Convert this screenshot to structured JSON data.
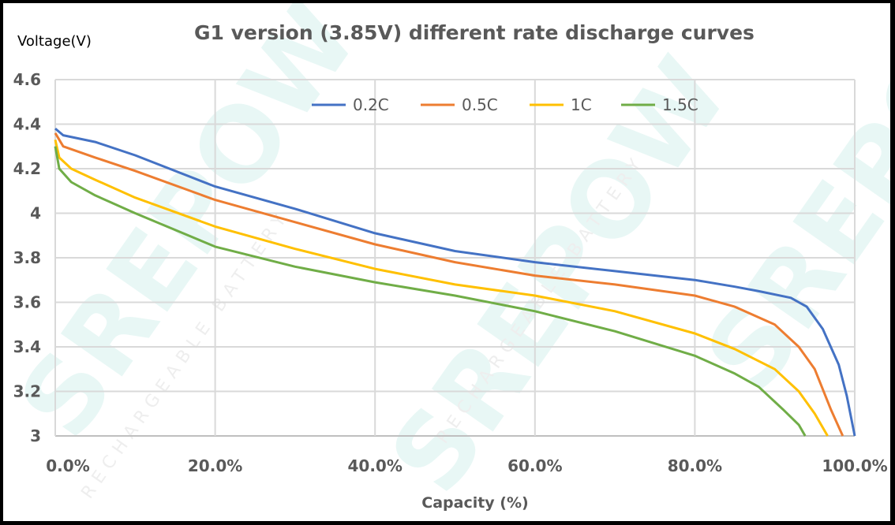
{
  "watermark": {
    "brand": "SREPOW",
    "tagline": "RECHARGEABLE BATTERY"
  },
  "chart_data": {
    "type": "line",
    "title": "G1 version (3.85V) different rate discharge curves",
    "xlabel": "Capacity (%)",
    "ylabel": "Voltage(V)",
    "xlim": [
      0,
      100
    ],
    "ylim": [
      3,
      4.6
    ],
    "xticks": [
      "0.0%",
      "20.0%",
      "40.0%",
      "60.0%",
      "80.0%",
      "100.0%"
    ],
    "yticks": [
      "3",
      "3.2",
      "3.4",
      "3.6",
      "3.8",
      "4",
      "4.2",
      "4.4",
      "4.6"
    ],
    "grid": true,
    "legend_position": "top-center",
    "series": [
      {
        "name": "0.2C",
        "color": "#4472c4",
        "points": [
          [
            0,
            4.38
          ],
          [
            1,
            4.35
          ],
          [
            5,
            4.32
          ],
          [
            10,
            4.26
          ],
          [
            20,
            4.12
          ],
          [
            30,
            4.02
          ],
          [
            40,
            3.91
          ],
          [
            50,
            3.83
          ],
          [
            60,
            3.78
          ],
          [
            70,
            3.74
          ],
          [
            80,
            3.7
          ],
          [
            85,
            3.67
          ],
          [
            88,
            3.65
          ],
          [
            92,
            3.62
          ],
          [
            94,
            3.58
          ],
          [
            96,
            3.48
          ],
          [
            98,
            3.32
          ],
          [
            99,
            3.18
          ],
          [
            100,
            3.0
          ]
        ]
      },
      {
        "name": "0.5C",
        "color": "#ed7d31",
        "points": [
          [
            0,
            4.36
          ],
          [
            1,
            4.3
          ],
          [
            5,
            4.25
          ],
          [
            10,
            4.19
          ],
          [
            20,
            4.06
          ],
          [
            30,
            3.96
          ],
          [
            40,
            3.86
          ],
          [
            50,
            3.78
          ],
          [
            60,
            3.72
          ],
          [
            70,
            3.68
          ],
          [
            80,
            3.63
          ],
          [
            85,
            3.58
          ],
          [
            90,
            3.5
          ],
          [
            93,
            3.4
          ],
          [
            95,
            3.3
          ],
          [
            97,
            3.12
          ],
          [
            98.5,
            3.0
          ]
        ]
      },
      {
        "name": "1C",
        "color": "#ffc000",
        "points": [
          [
            0,
            4.33
          ],
          [
            0.5,
            4.25
          ],
          [
            2,
            4.2
          ],
          [
            5,
            4.15
          ],
          [
            10,
            4.07
          ],
          [
            20,
            3.94
          ],
          [
            30,
            3.84
          ],
          [
            40,
            3.75
          ],
          [
            50,
            3.68
          ],
          [
            60,
            3.63
          ],
          [
            70,
            3.56
          ],
          [
            80,
            3.46
          ],
          [
            85,
            3.39
          ],
          [
            90,
            3.3
          ],
          [
            93,
            3.2
          ],
          [
            95,
            3.1
          ],
          [
            96.6,
            3.0
          ]
        ]
      },
      {
        "name": "1.5C",
        "color": "#70ad47",
        "points": [
          [
            0,
            4.3
          ],
          [
            0.5,
            4.2
          ],
          [
            2,
            4.14
          ],
          [
            5,
            4.08
          ],
          [
            10,
            4.0
          ],
          [
            20,
            3.85
          ],
          [
            30,
            3.76
          ],
          [
            40,
            3.69
          ],
          [
            50,
            3.63
          ],
          [
            60,
            3.56
          ],
          [
            70,
            3.47
          ],
          [
            80,
            3.36
          ],
          [
            85,
            3.28
          ],
          [
            88,
            3.22
          ],
          [
            91,
            3.12
          ],
          [
            93,
            3.05
          ],
          [
            93.8,
            3.0
          ]
        ]
      }
    ]
  }
}
